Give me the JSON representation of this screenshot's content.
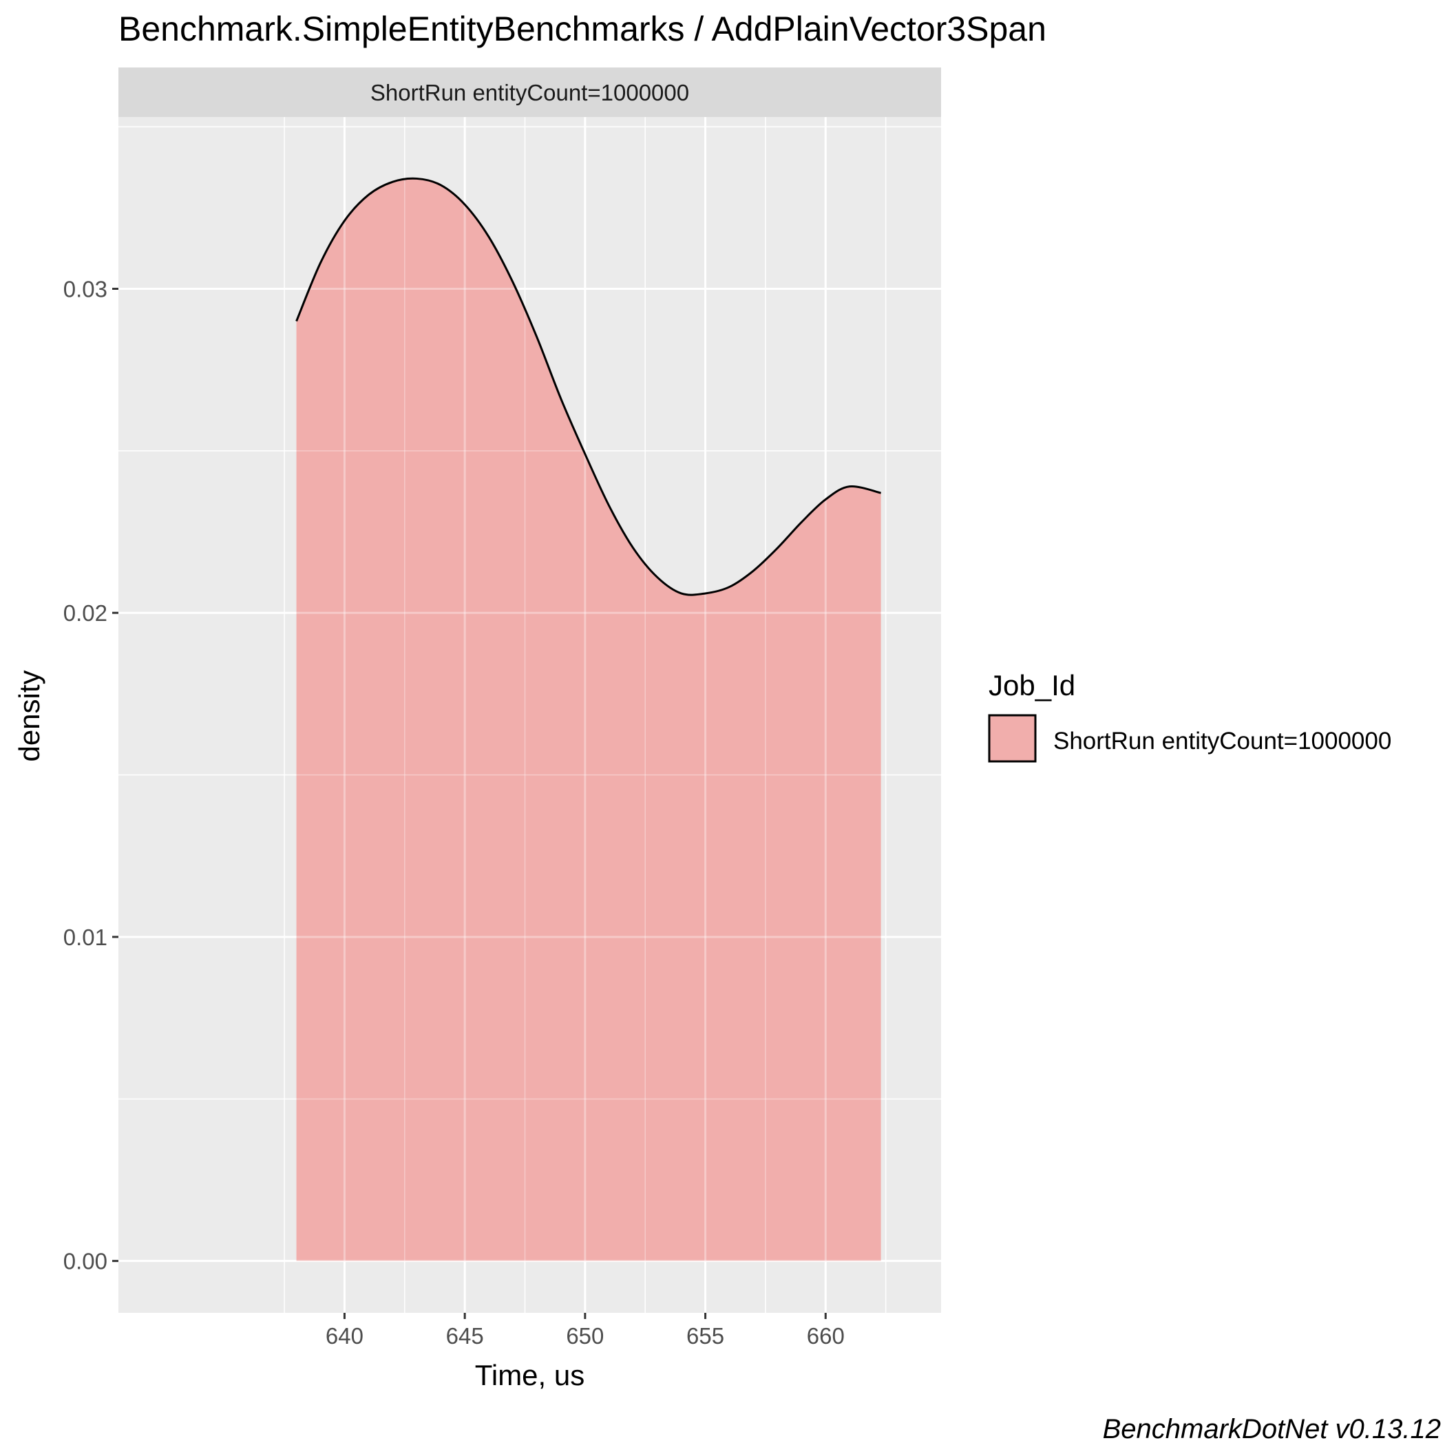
{
  "chart_data": {
    "type": "area",
    "title": "Benchmark.SimpleEntityBenchmarks / AddPlainVector3Span",
    "facet_label": "ShortRun entityCount=1000000",
    "xlabel": "Time, us",
    "ylabel": "density",
    "xlim": [
      630.6,
      664.8
    ],
    "ylim": [
      -0.0016,
      0.0353
    ],
    "x_ticks": [
      640,
      645,
      650,
      655,
      660
    ],
    "x_tick_labels": [
      "640",
      "645",
      "650",
      "655",
      "660"
    ],
    "y_ticks": [
      0.0,
      0.01,
      0.02,
      0.03
    ],
    "y_tick_labels": [
      "0.00",
      "0.01",
      "0.02",
      "0.03"
    ],
    "grid": true,
    "legend": {
      "title": "Job_Id",
      "position": "right",
      "entries": [
        "ShortRun entityCount=1000000"
      ]
    },
    "series": [
      {
        "name": "ShortRun entityCount=1000000",
        "fill": "#f1aeac",
        "stroke": "#000000",
        "x": [
          638.0,
          639.0,
          640.0,
          641.0,
          642.0,
          643.0,
          644.0,
          645.0,
          646.0,
          647.0,
          648.0,
          649.0,
          650.0,
          651.0,
          652.0,
          653.0,
          654.0,
          655.0,
          656.0,
          657.0,
          658.0,
          659.0,
          660.0,
          661.0,
          662.3
        ],
        "y": [
          0.029,
          0.0308,
          0.0321,
          0.0329,
          0.0333,
          0.0334,
          0.0332,
          0.0326,
          0.0316,
          0.0302,
          0.0285,
          0.0266,
          0.0249,
          0.0233,
          0.022,
          0.0211,
          0.0206,
          0.0206,
          0.0208,
          0.0213,
          0.022,
          0.0228,
          0.0235,
          0.0239,
          0.0237
        ]
      }
    ]
  },
  "footer": "BenchmarkDotNet v0.13.12",
  "colors": {
    "panel_bg": "#ebebeb",
    "strip_bg": "#d9d9d9",
    "grid": "#ffffff",
    "fill": "#f1aeac"
  }
}
